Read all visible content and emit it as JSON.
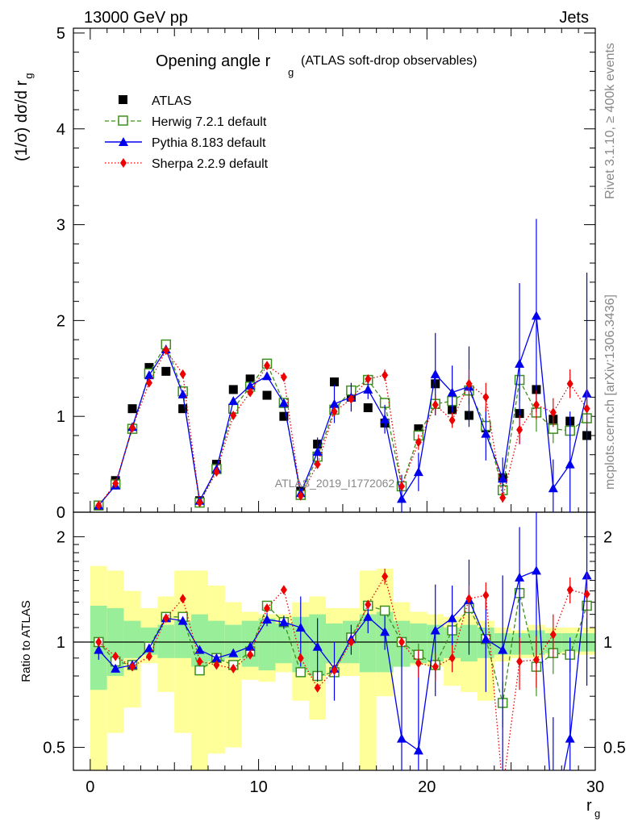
{
  "header": {
    "left": "13000 GeV pp",
    "right": "Jets",
    "side_events": "Rivet 3.1.10, ≥ 400k events",
    "side_site": "mcplots.cern.ch [arXiv:1306.3436]"
  },
  "chart_data": [
    {
      "type": "scatter",
      "panel": "main",
      "title": "Opening angle r",
      "title_sub": "g",
      "title_note": "(ATLAS soft-drop observables)",
      "ylabel": "(1/σ) dσ/d r",
      "ylabel_sub": "g",
      "xlim": [
        -1,
        30
      ],
      "ylim": [
        0,
        5.05
      ],
      "yticks": [
        0,
        1,
        2,
        3,
        4,
        5
      ],
      "watermark": "ATLAS_2019_I1772062",
      "x": [
        0.5,
        1.5,
        2.5,
        3.5,
        4.5,
        5.5,
        6.5,
        7.5,
        8.5,
        9.5,
        10.5,
        11.5,
        12.5,
        13.5,
        14.5,
        15.5,
        16.5,
        17.5,
        18.5,
        19.5,
        20.5,
        21.5,
        22.5,
        23.5,
        24.5,
        25.5,
        26.5,
        27.5,
        28.5,
        29.5
      ],
      "series": [
        {
          "name": "ATLAS",
          "color": "#000000",
          "marker": "square",
          "values": [
            0.07,
            0.33,
            1.08,
            1.51,
            1.47,
            1.08,
            0.12,
            0.5,
            1.28,
            1.39,
            1.22,
            1.0,
            0.22,
            0.71,
            1.36,
            1.2,
            1.09,
            0.93,
            0.27,
            0.87,
            1.34,
            1.07,
            1.01,
            0.88,
            0.36,
            1.03,
            1.28,
            0.97,
            0.95,
            0.8
          ]
        },
        {
          "name": "Herwig 7.2.1 default",
          "color": "#3d8f1e",
          "marker": "open-square",
          "values": [
            0.07,
            0.29,
            0.87,
            1.45,
            1.75,
            1.26,
            0.1,
            0.45,
            1.08,
            1.31,
            1.55,
            1.14,
            0.18,
            0.58,
            1.07,
            1.27,
            1.38,
            1.14,
            0.27,
            0.8,
            1.13,
            1.16,
            1.27,
            0.9,
            0.23,
            1.38,
            1.04,
            0.87,
            0.85,
            0.98
          ],
          "errors": [
            0,
            0,
            0,
            0,
            0,
            0,
            0,
            0,
            0,
            0,
            0,
            0,
            0,
            0,
            0,
            0,
            0,
            0,
            0,
            0.06,
            0.1,
            0.1,
            0.15,
            0.12,
            0.08,
            0.22,
            0.2,
            0.15,
            0.1,
            0.2
          ]
        },
        {
          "name": "Pythia 8.183 default",
          "color": "#0000ee",
          "marker": "triangle",
          "values": [
            0.07,
            0.28,
            0.89,
            1.43,
            1.7,
            1.23,
            0.12,
            0.45,
            1.16,
            1.32,
            1.42,
            1.14,
            0.2,
            0.63,
            1.13,
            1.2,
            1.28,
            0.97,
            0.14,
            0.42,
            1.44,
            1.25,
            1.31,
            0.82,
            0.35,
            1.55,
            2.05,
            0.25,
            0.5,
            1.24
          ],
          "errors": [
            0,
            0,
            0,
            0,
            0,
            0,
            0,
            0,
            0,
            0,
            0,
            0.04,
            0.03,
            0.15,
            0.2,
            0.15,
            0.1,
            0.15,
            0.25,
            0.2,
            0.43,
            0.28,
            0.42,
            0.28,
            0.22,
            0.84,
            1.01,
            0.3,
            0.55,
            1.26
          ]
        },
        {
          "name": "Sherpa 2.2.9 default",
          "color": "#ee0000",
          "marker": "diamond",
          "values": [
            0.07,
            0.3,
            0.88,
            1.35,
            1.69,
            1.44,
            0.1,
            0.42,
            1.01,
            1.25,
            1.53,
            1.41,
            0.17,
            0.5,
            1.05,
            1.18,
            1.39,
            1.43,
            0.27,
            0.73,
            1.12,
            0.96,
            1.34,
            1.2,
            0.15,
            0.86,
            1.12,
            1.04,
            1.34,
            1.08
          ],
          "errors": [
            0,
            0,
            0,
            0,
            0,
            0,
            0,
            0,
            0,
            0,
            0,
            0,
            0,
            0,
            0,
            0,
            0,
            0.06,
            0,
            0.08,
            0.1,
            0.08,
            0.15,
            0.15,
            0.05,
            0.15,
            0.15,
            0.15,
            0.15,
            0.2
          ]
        }
      ]
    },
    {
      "type": "scatter",
      "panel": "ratio",
      "ylabel": "Ratio to ATLAS",
      "xlabel": "r",
      "xlabel_sub": "g",
      "xlim": [
        -1,
        30
      ],
      "ylim": [
        0.43,
        2.35
      ],
      "yticks": [
        0.5,
        1,
        2
      ],
      "ytick_labels": [
        "0.5",
        "1",
        "2"
      ],
      "xticks": [
        0,
        10,
        20,
        30
      ],
      "band_inner_lo": [
        0.73,
        0.8,
        0.9,
        0.92,
        0.9,
        0.9,
        0.85,
        0.88,
        0.9,
        0.85,
        0.83,
        0.87,
        0.82,
        0.8,
        0.87,
        0.87,
        0.82,
        0.82,
        0.85,
        0.87,
        0.88,
        0.9,
        0.88,
        0.9,
        0.92,
        0.92,
        0.92,
        0.93,
        0.94,
        0.94
      ],
      "band_inner_hi": [
        1.27,
        1.25,
        1.15,
        1.1,
        1.12,
        1.15,
        1.2,
        1.15,
        1.12,
        1.15,
        1.17,
        1.13,
        1.18,
        1.2,
        1.13,
        1.15,
        1.2,
        1.22,
        1.15,
        1.13,
        1.12,
        1.1,
        1.12,
        1.1,
        1.06,
        1.06,
        1.08,
        1.06,
        1.06,
        1.06
      ],
      "band_outer_lo": [
        0.3,
        0.55,
        0.65,
        0.87,
        0.72,
        0.55,
        0.4,
        0.48,
        0.5,
        0.78,
        0.77,
        0.82,
        0.68,
        0.6,
        0.8,
        0.8,
        0.35,
        0.7,
        0.85,
        0.86,
        0.85,
        0.75,
        0.72,
        0.68,
        0.88,
        0.9,
        0.9,
        0.92,
        0.93,
        0.92
      ],
      "band_outer_hi": [
        1.65,
        1.6,
        1.4,
        1.25,
        1.35,
        1.6,
        1.6,
        1.45,
        1.3,
        1.22,
        1.2,
        1.2,
        1.3,
        1.35,
        1.25,
        1.25,
        1.6,
        1.62,
        1.3,
        1.22,
        1.2,
        1.18,
        1.2,
        1.15,
        1.1,
        1.08,
        1.12,
        1.1,
        1.1,
        1.1
      ],
      "ratios": [
        {
          "name": "Herwig 7.2.1 default",
          "values": [
            1.0,
            0.88,
            0.86,
            0.97,
            1.18,
            1.18,
            0.83,
            0.9,
            0.86,
            0.94,
            1.27,
            1.14,
            0.82,
            0.8,
            0.82,
            1.03,
            1.27,
            1.23,
            1.0,
            0.92,
            0.86,
            1.08,
            1.25,
            1.02,
            0.67,
            1.38,
            0.85,
            0.93,
            0.92,
            1.27
          ],
          "errors": [
            0,
            0,
            0,
            0,
            0,
            0,
            0,
            0,
            0,
            0,
            0,
            0,
            0,
            0,
            0,
            0,
            0,
            0,
            0,
            0.07,
            0.07,
            0.1,
            0.15,
            0.12,
            0.1,
            0.2,
            0.15,
            0.12,
            0.1,
            0.2
          ]
        },
        {
          "name": "Pythia 8.183 default",
          "values": [
            0.95,
            0.84,
            0.86,
            0.96,
            1.17,
            1.15,
            0.95,
            0.9,
            0.93,
            0.97,
            1.16,
            1.14,
            1.1,
            0.97,
            0.84,
            1.02,
            1.18,
            1.07,
            0.53,
            0.49,
            1.08,
            1.17,
            1.32,
            1.02,
            0.95,
            1.53,
            1.6,
            0.26,
            0.53,
            1.55
          ],
          "errors": [
            0.06,
            0,
            0,
            0,
            0,
            0,
            0,
            0,
            0,
            0,
            0.05,
            0.05,
            0.25,
            0.2,
            0.16,
            0.1,
            0.12,
            0.12,
            0.5,
            0.45,
            0.38,
            0.28,
            0.4,
            0.3,
            0.6,
            0.6,
            0.75,
            0.35,
            0.5,
            0.8
          ]
        },
        {
          "name": "Sherpa 2.2.9 default",
          "values": [
            1.0,
            0.91,
            0.85,
            0.91,
            1.17,
            1.33,
            0.88,
            0.86,
            0.84,
            0.92,
            1.25,
            1.41,
            0.9,
            0.74,
            0.83,
            1.0,
            1.28,
            1.54,
            1.0,
            0.87,
            0.85,
            0.9,
            1.33,
            1.36,
            0.38,
            0.88,
            0.89,
            1.05,
            1.41,
            1.37
          ],
          "errors": [
            0,
            0,
            0,
            0,
            0,
            0,
            0,
            0,
            0,
            0,
            0,
            0,
            0,
            0,
            0,
            0,
            0,
            0.08,
            0,
            0.08,
            0.08,
            0.08,
            0.12,
            0.12,
            0.05,
            0.15,
            0.15,
            0.15,
            0.12,
            0.2
          ]
        }
      ]
    }
  ]
}
